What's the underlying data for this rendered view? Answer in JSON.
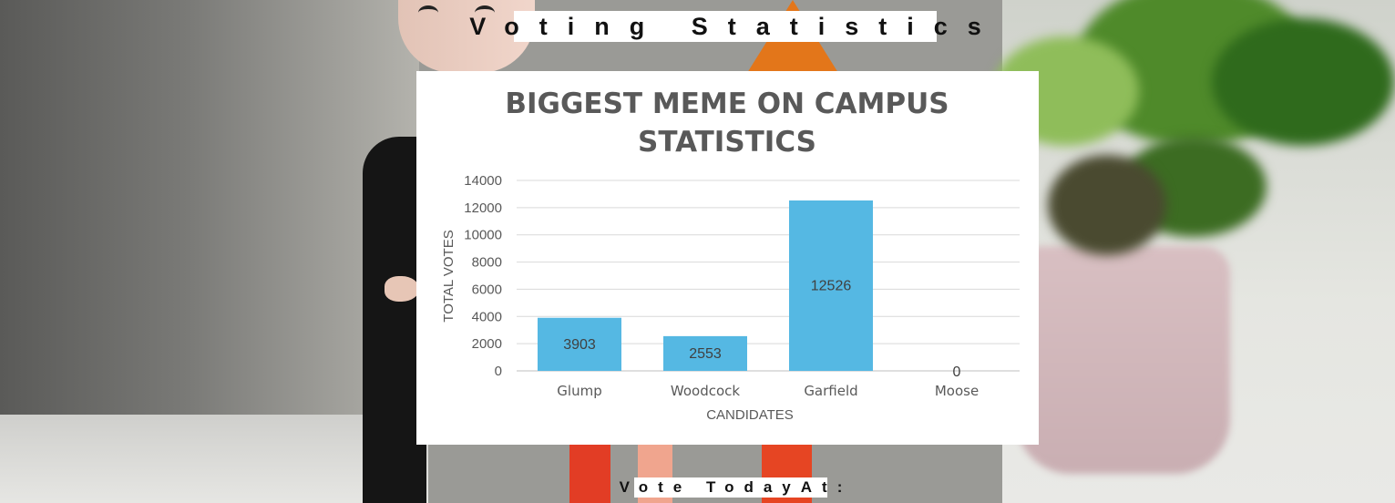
{
  "header": {
    "title": "Voting Statistics"
  },
  "footer": {
    "cta": "Vote TodayAt:"
  },
  "colors": {
    "bar": "#55b8e3",
    "title": "#595959",
    "grid": "#d9d9d9"
  },
  "chart_data": {
    "type": "bar",
    "title_lines": [
      "BIGGEST MEME ON CAMPUS",
      "STATISTICS"
    ],
    "xlabel": "CANDIDATES",
    "ylabel": "TOTAL VOTES",
    "categories": [
      "Glump",
      "Woodcock",
      "Garfield",
      "Moose"
    ],
    "values": [
      3903,
      2553,
      12526,
      0
    ],
    "ylim": [
      0,
      14000
    ],
    "yticks": [
      0,
      2000,
      4000,
      6000,
      8000,
      10000,
      12000,
      14000
    ],
    "grid": true,
    "data_labels": true
  }
}
